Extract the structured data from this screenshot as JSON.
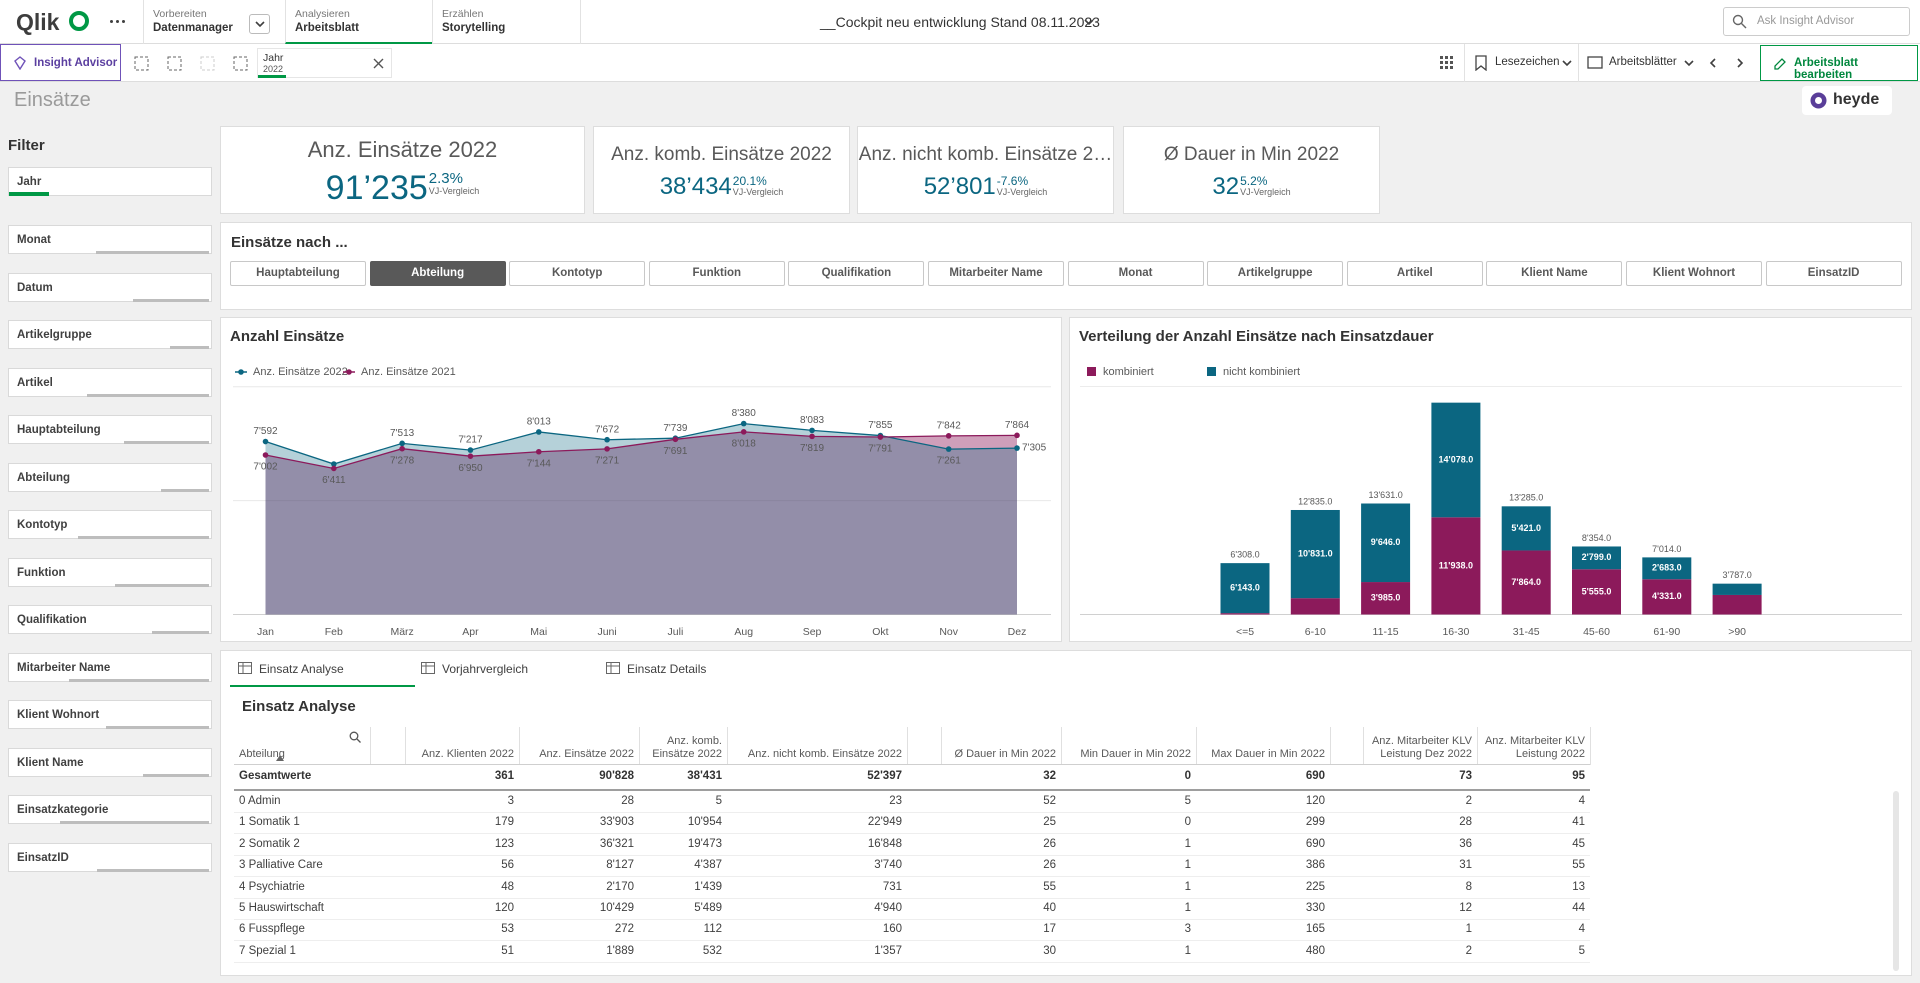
{
  "header": {
    "logo": "Qlik",
    "nav": [
      {
        "step": "Vorbereiten",
        "label": "Datenmanager"
      },
      {
        "step": "Analysieren",
        "label": "Arbeitsblatt"
      },
      {
        "step": "Erzählen",
        "label": "Storytelling"
      }
    ],
    "active_nav": 1,
    "app_title": "__Cockpit neu entwicklung Stand 08.11.2023",
    "search_placeholder": "Ask Insight Advisor"
  },
  "toolbar": {
    "insight_advisor": "Insight Advisor",
    "selection": {
      "field": "Jahr",
      "value": "2022"
    },
    "bookmarks": "Lesezeichen",
    "sheets": "Arbeitsblätter",
    "edit": "Arbeitsblatt bearbeiten"
  },
  "sheet": {
    "title": "Einsätze",
    "brand": "heyde"
  },
  "filters": {
    "title": "Filter",
    "items": [
      "Jahr",
      "Monat",
      "Datum",
      "Artikelgruppe",
      "Artikel",
      "Hauptabteilung",
      "Abteilung",
      "Kontotyp",
      "Funktion",
      "Qualifikation",
      "Mitarbeiter Name",
      "Klient Wohnort",
      "Klient Name",
      "Einsatzkategorie",
      "EinsatzID"
    ]
  },
  "kpis": [
    {
      "title": "Anz. Einsätze 2022",
      "value": "91’235",
      "change": "2.3%",
      "note": "VJ-Vergleich"
    },
    {
      "title": "Anz. komb. Einsätze 2022",
      "value": "38’434",
      "change": "20.1%",
      "note": "VJ-Vergleich"
    },
    {
      "title": "Anz. nicht komb. Einsätze 2…",
      "value": "52’801",
      "change": "-7.6%",
      "note": "VJ-Vergleich"
    },
    {
      "title": "Ø Dauer in Min 2022",
      "value": "32",
      "change": "5.2%",
      "note": "VJ-Vergleich"
    }
  ],
  "dimension_selector": {
    "title": "Einsätze nach ...",
    "buttons": [
      "Hauptabteilung",
      "Abteilung",
      "Kontotyp",
      "Funktion",
      "Qualifikation",
      "Mitarbeiter Name",
      "Monat",
      "Artikelgruppe",
      "Artikel",
      "Klient Name",
      "Klient Wohnort",
      "EinsatzID"
    ],
    "selected": 1
  },
  "chart_data": [
    {
      "type": "area",
      "title": "Anzahl Einsätze",
      "categories": [
        "Jan",
        "Feb",
        "März",
        "Apr",
        "Mai",
        "Juni",
        "Juli",
        "Aug",
        "Sep",
        "Okt",
        "Nov",
        "Dez"
      ],
      "series": [
        {
          "name": "Anz. Einsätze 2022",
          "color": "#0b6681",
          "values": [
            7592,
            6605,
            7513,
            7217,
            8013,
            7672,
            7739,
            8380,
            8083,
            7855,
            7261,
            7305
          ],
          "value_labels": [
            "7'592",
            null,
            "7'513",
            "7'217",
            "8'013",
            "7'672",
            "7'739",
            "8'380",
            "8'083",
            "7'855",
            "7'261",
            "7'305"
          ]
        },
        {
          "name": "Anz. Einsätze 2021",
          "color": "#8c1a5b",
          "values": [
            7002,
            6411,
            7278,
            6950,
            7144,
            7271,
            7691,
            8018,
            7819,
            7791,
            7842,
            7864
          ],
          "value_labels": [
            "7'002",
            "6'411",
            "7'278",
            "6'950",
            "7'144",
            "7'271",
            "7'691",
            "8'018",
            "7'819",
            "7'791",
            "7'842",
            "7'864"
          ]
        }
      ],
      "ylim": [
        0,
        10000
      ],
      "grid": true,
      "legend": "top-left"
    },
    {
      "type": "stacked-bar",
      "title": "Verteilung der Anzahl Einsätze nach Einsatzdauer",
      "categories": [
        "<=5",
        "6-10",
        "11-15",
        "16-30",
        "31-45",
        "45-60",
        "61-90",
        ">90"
      ],
      "series": [
        {
          "name": "kombiniert",
          "color": "#8c1a5b",
          "values": [
            165,
            2004,
            3985,
            11938,
            7864,
            5555,
            4331,
            2400
          ],
          "value_labels": [
            null,
            null,
            "3'985.0",
            "11'938.0",
            "7'864.0",
            "5'555.0",
            "4'331.0",
            null
          ]
        },
        {
          "name": "nicht kombiniert",
          "color": "#0b6681",
          "values": [
            6143,
            10831,
            9646,
            14078,
            5421,
            2799,
            2683,
            1387
          ],
          "value_labels": [
            "6'143.0",
            "10'831.0",
            "9'646.0",
            "14'078.0",
            "5'421.0",
            "2'799.0",
            "2'683.0",
            null
          ]
        }
      ],
      "totals": [
        6308,
        12835,
        13631,
        null,
        13285,
        8354,
        7014,
        3787
      ],
      "total_labels": [
        "6'308.0",
        "12'835.0",
        "13'631.0",
        null,
        "13'285.0",
        "8'354.0",
        "7'014.0",
        "3'787.0"
      ],
      "ylim": [
        0,
        28000
      ],
      "legend": "top-left"
    }
  ],
  "table_panel": {
    "tabs": [
      "Einsatz Analyse",
      "Vorjahrvergleich",
      "Einsatz Details"
    ],
    "active_tab": 0,
    "title": "Einsatz Analyse",
    "columns": [
      "Abteilung",
      "Anz. Klienten 2022",
      "Anz. Einsätze 2022",
      "Anz. komb. Einsätze 2022",
      "Anz. nicht komb. Einsätze 2022",
      "Ø Dauer in Min 2022",
      "Min Dauer in Min 2022",
      "Max Dauer in Min 2022",
      "Anz. Mitarbeiter KLV Leistung Dez 2022",
      "Anz. Mitarbeiter KLV Leistung 2022"
    ],
    "totals_row": [
      "Gesamtwerte",
      "361",
      "90'828",
      "38'431",
      "52'397",
      "32",
      "0",
      "690",
      "73",
      "95"
    ],
    "rows": [
      [
        "0 Admin",
        "3",
        "28",
        "5",
        "23",
        "52",
        "5",
        "120",
        "2",
        "4"
      ],
      [
        "1 Somatik 1",
        "179",
        "33'903",
        "10'954",
        "22'949",
        "25",
        "0",
        "299",
        "28",
        "41"
      ],
      [
        "2 Somatik 2",
        "123",
        "36'321",
        "19'473",
        "16'848",
        "26",
        "1",
        "690",
        "36",
        "45"
      ],
      [
        "3 Palliative Care",
        "56",
        "8'127",
        "4'387",
        "3'740",
        "26",
        "1",
        "386",
        "31",
        "55"
      ],
      [
        "4 Psychiatrie",
        "48",
        "2'170",
        "1'439",
        "731",
        "55",
        "1",
        "225",
        "8",
        "13"
      ],
      [
        "5 Hauswirtschaft",
        "120",
        "10'429",
        "5'489",
        "4'940",
        "40",
        "1",
        "330",
        "12",
        "44"
      ],
      [
        "6 Fusspflege",
        "53",
        "272",
        "112",
        "160",
        "17",
        "3",
        "165",
        "1",
        "4"
      ],
      [
        "7 Spezial 1",
        "51",
        "1'889",
        "532",
        "1'357",
        "30",
        "1",
        "480",
        "2",
        "5"
      ]
    ]
  }
}
